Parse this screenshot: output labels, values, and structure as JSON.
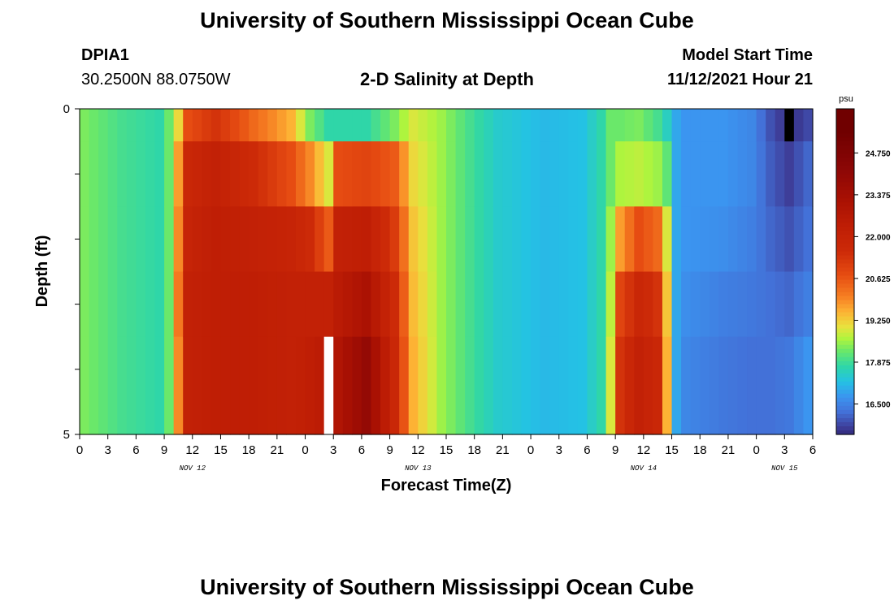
{
  "page": {
    "title": "University of Southern Mississippi Ocean Cube",
    "title_bottom": "University of Southern Mississippi Ocean Cube",
    "station_id": "DPIA1",
    "station_coords": "30.2500N  88.0750W",
    "subtitle": "2-D Salinity at Depth",
    "model_start_label": "Model Start Time",
    "model_start_value": "11/12/2021 Hour 21"
  },
  "chart_data": {
    "type": "heatmap",
    "title": "2-D Salinity at Depth",
    "xlabel": "Forecast Time(Z)",
    "ylabel": "Depth (ft)",
    "colorbar_unit": "psu",
    "y_range": [
      0,
      5
    ],
    "y_ticks": [
      "0",
      "5"
    ],
    "x_tick_labels": [
      "0",
      "3",
      "6",
      "9",
      "12",
      "15",
      "18",
      "21",
      "0",
      "3",
      "6",
      "9",
      "12",
      "15",
      "18",
      "21",
      "0",
      "3",
      "6",
      "9",
      "12",
      "15",
      "18",
      "21",
      "0",
      "3",
      "6"
    ],
    "date_labels": [
      {
        "label": "NOV 12",
        "tick_index": 4
      },
      {
        "label": "NOV 13",
        "tick_index": 12
      },
      {
        "label": "NOV 14",
        "tick_index": 20
      },
      {
        "label": "NOV 15",
        "tick_index": 25
      }
    ],
    "colorbar_ticks": [
      "24.750",
      "23.375",
      "22.000",
      "20.625",
      "19.250",
      "17.875",
      "16.500"
    ],
    "colorbar_range": [
      15.5,
      26.2
    ],
    "depth_levels": 5,
    "time_columns": 78,
    "anchors": [
      {
        "col": 0,
        "v": [
          18.4,
          18.4,
          18.4,
          18.4,
          18.4
        ]
      },
      {
        "col": 4,
        "v": [
          18.0,
          18.0,
          18.0,
          18.0,
          18.0
        ]
      },
      {
        "col": 8,
        "v": [
          17.8,
          17.8,
          17.8,
          17.8,
          17.8
        ]
      },
      {
        "col": 9,
        "v": [
          18.3,
          18.3,
          18.3,
          18.3,
          18.3
        ]
      },
      {
        "col": 10,
        "v": [
          19.2,
          19.8,
          20.0,
          20.2,
          20.0
        ]
      },
      {
        "col": 11,
        "v": [
          20.8,
          21.8,
          22.0,
          22.2,
          22.2
        ]
      },
      {
        "col": 14,
        "v": [
          21.4,
          22.2,
          22.4,
          22.4,
          22.4
        ]
      },
      {
        "col": 18,
        "v": [
          20.4,
          21.6,
          22.2,
          22.4,
          22.4
        ]
      },
      {
        "col": 22,
        "v": [
          19.6,
          20.8,
          22.0,
          22.2,
          22.2
        ]
      },
      {
        "col": 24,
        "v": [
          18.4,
          20.0,
          21.6,
          22.2,
          22.4
        ]
      },
      {
        "col": 26,
        "v": [
          17.8,
          19.0,
          20.6,
          22.2,
          22.6
        ]
      },
      {
        "col": 27,
        "v": [
          17.8,
          20.8,
          22.2,
          22.6,
          23.0
        ]
      },
      {
        "col": 30,
        "v": [
          17.8,
          21.0,
          22.4,
          23.2,
          24.0
        ]
      },
      {
        "col": 33,
        "v": [
          18.4,
          20.6,
          21.2,
          21.6,
          21.8
        ]
      },
      {
        "col": 35,
        "v": [
          19.0,
          19.2,
          19.4,
          19.5,
          19.6
        ]
      },
      {
        "col": 38,
        "v": [
          18.6,
          18.6,
          18.6,
          18.6,
          18.6
        ]
      },
      {
        "col": 41,
        "v": [
          18.0,
          18.0,
          18.0,
          18.0,
          18.0
        ]
      },
      {
        "col": 44,
        "v": [
          17.5,
          17.5,
          17.5,
          17.5,
          17.5
        ]
      },
      {
        "col": 49,
        "v": [
          17.2,
          17.2,
          17.2,
          17.2,
          17.2
        ]
      },
      {
        "col": 53,
        "v": [
          17.3,
          17.3,
          17.3,
          17.3,
          17.3
        ]
      },
      {
        "col": 55,
        "v": [
          17.8,
          17.8,
          17.8,
          17.8,
          17.8
        ]
      },
      {
        "col": 56,
        "v": [
          18.3,
          18.3,
          18.6,
          18.8,
          19.0
        ]
      },
      {
        "col": 57,
        "v": [
          18.3,
          18.7,
          19.8,
          21.0,
          21.4
        ]
      },
      {
        "col": 59,
        "v": [
          18.4,
          18.8,
          20.8,
          21.8,
          22.2
        ]
      },
      {
        "col": 61,
        "v": [
          18.0,
          18.6,
          20.4,
          21.4,
          21.8
        ]
      },
      {
        "col": 62,
        "v": [
          17.6,
          18.2,
          19.0,
          19.4,
          19.6
        ]
      },
      {
        "col": 63,
        "v": [
          17.0,
          17.0,
          17.0,
          17.0,
          17.0
        ]
      },
      {
        "col": 64,
        "v": [
          16.8,
          16.8,
          16.8,
          16.7,
          16.6
        ]
      },
      {
        "col": 68,
        "v": [
          16.8,
          16.8,
          16.7,
          16.5,
          16.4
        ]
      },
      {
        "col": 71,
        "v": [
          16.6,
          16.6,
          16.5,
          16.4,
          16.3
        ]
      },
      {
        "col": 73,
        "v": [
          16.0,
          16.1,
          16.2,
          16.3,
          16.3
        ]
      },
      {
        "col": 75,
        "v": [
          15.6,
          15.8,
          16.0,
          16.2,
          16.4
        ]
      },
      {
        "col": 77,
        "v": [
          15.9,
          16.2,
          16.3,
          16.5,
          16.8
        ]
      }
    ],
    "overrides": [
      {
        "col": 26,
        "row": 4,
        "v": null
      },
      {
        "col": 75,
        "row": 0,
        "v": 15.0
      }
    ],
    "colormap": [
      [
        15.3,
        "#24125a"
      ],
      [
        15.8,
        "#3e3e99"
      ],
      [
        16.3,
        "#4371d8"
      ],
      [
        16.8,
        "#3b95f0"
      ],
      [
        17.3,
        "#24c2e4"
      ],
      [
        17.8,
        "#2fd6a8"
      ],
      [
        18.3,
        "#6ae86a"
      ],
      [
        18.7,
        "#aef43e"
      ],
      [
        19.1,
        "#e8e23e"
      ],
      [
        19.6,
        "#fdb234"
      ],
      [
        20.1,
        "#f67e22"
      ],
      [
        20.8,
        "#e64c12"
      ],
      [
        21.6,
        "#cc2a08"
      ],
      [
        22.4,
        "#bf1e05"
      ],
      [
        23.3,
        "#a81003"
      ],
      [
        24.3,
        "#8c0706"
      ],
      [
        25.5,
        "#700000"
      ]
    ]
  }
}
